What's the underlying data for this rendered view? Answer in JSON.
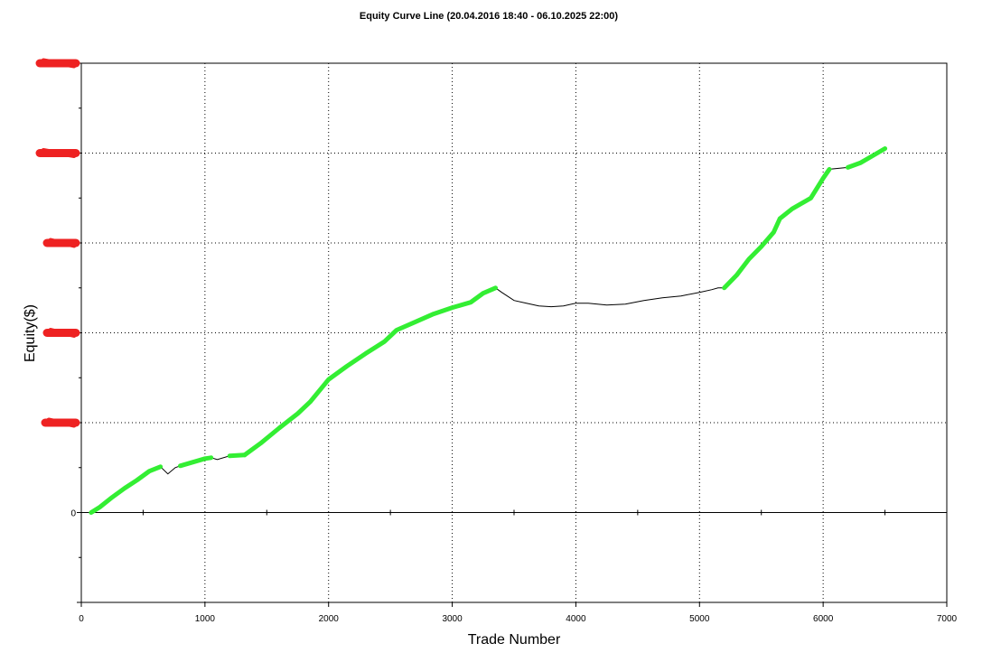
{
  "chart_data": {
    "type": "line",
    "title": "Equity Curve Line (20.04.2016 18:40 - 06.10.2025 22:00)",
    "xlabel": "Trade Number",
    "ylabel": "Equity($)",
    "xlim": [
      0,
      7000
    ],
    "x_ticks": [
      0,
      1000,
      2000,
      3000,
      4000,
      5000,
      6000,
      7000
    ],
    "x_tick_labels": [
      "0",
      "1000",
      "2000",
      "3000",
      "4000",
      "5000",
      "6000",
      "7000"
    ],
    "ylim": [
      -1,
      5
    ],
    "y_tick_labels": [
      {
        "y": 0,
        "label": "0"
      }
    ],
    "redacted_y_ticks": [
      1,
      2,
      3,
      4,
      5
    ],
    "grid": true,
    "colors": {
      "new_high_segment": "#33ee33",
      "drawdown_segment": "#000000",
      "redaction": "#ee2222"
    },
    "series": [
      {
        "points": [
          [
            0,
            0.0
          ],
          [
            80,
            0.0
          ],
          [
            150,
            0.06
          ],
          [
            250,
            0.17
          ],
          [
            350,
            0.27
          ],
          [
            450,
            0.36
          ],
          [
            550,
            0.46
          ],
          [
            640,
            0.51
          ],
          [
            700,
            0.43
          ],
          [
            760,
            0.5
          ],
          [
            800,
            0.52
          ],
          [
            900,
            0.56
          ],
          [
            1000,
            0.6
          ],
          [
            1050,
            0.61
          ],
          [
            1100,
            0.59
          ],
          [
            1200,
            0.63
          ],
          [
            1320,
            0.64
          ],
          [
            1450,
            0.77
          ],
          [
            1600,
            0.94
          ],
          [
            1750,
            1.1
          ],
          [
            1850,
            1.23
          ],
          [
            2000,
            1.48
          ],
          [
            2150,
            1.63
          ],
          [
            2300,
            1.77
          ],
          [
            2450,
            1.9
          ],
          [
            2550,
            2.03
          ],
          [
            2700,
            2.12
          ],
          [
            2850,
            2.21
          ],
          [
            3000,
            2.28
          ],
          [
            3150,
            2.34
          ],
          [
            3250,
            2.44
          ],
          [
            3350,
            2.5
          ],
          [
            3400,
            2.45
          ],
          [
            3500,
            2.36
          ],
          [
            3600,
            2.33
          ],
          [
            3700,
            2.3
          ],
          [
            3800,
            2.29
          ],
          [
            3900,
            2.3
          ],
          [
            4000,
            2.33
          ],
          [
            4100,
            2.33
          ],
          [
            4250,
            2.31
          ],
          [
            4400,
            2.32
          ],
          [
            4550,
            2.36
          ],
          [
            4700,
            2.39
          ],
          [
            4850,
            2.41
          ],
          [
            5000,
            2.45
          ],
          [
            5100,
            2.48
          ],
          [
            5150,
            2.5
          ],
          [
            5200,
            2.5
          ],
          [
            5300,
            2.64
          ],
          [
            5400,
            2.82
          ],
          [
            5500,
            2.96
          ],
          [
            5600,
            3.12
          ],
          [
            5650,
            3.27
          ],
          [
            5750,
            3.38
          ],
          [
            5900,
            3.5
          ],
          [
            6000,
            3.72
          ],
          [
            6050,
            3.82
          ],
          [
            6200,
            3.84
          ],
          [
            6300,
            3.89
          ],
          [
            6400,
            3.97
          ],
          [
            6500,
            4.05
          ]
        ],
        "new_high_ranges": [
          [
            50,
            640
          ],
          [
            800,
            1050
          ],
          [
            1200,
            1320
          ],
          [
            1320,
            3350
          ],
          [
            5160,
            6050
          ],
          [
            6200,
            6500
          ]
        ]
      }
    ]
  }
}
